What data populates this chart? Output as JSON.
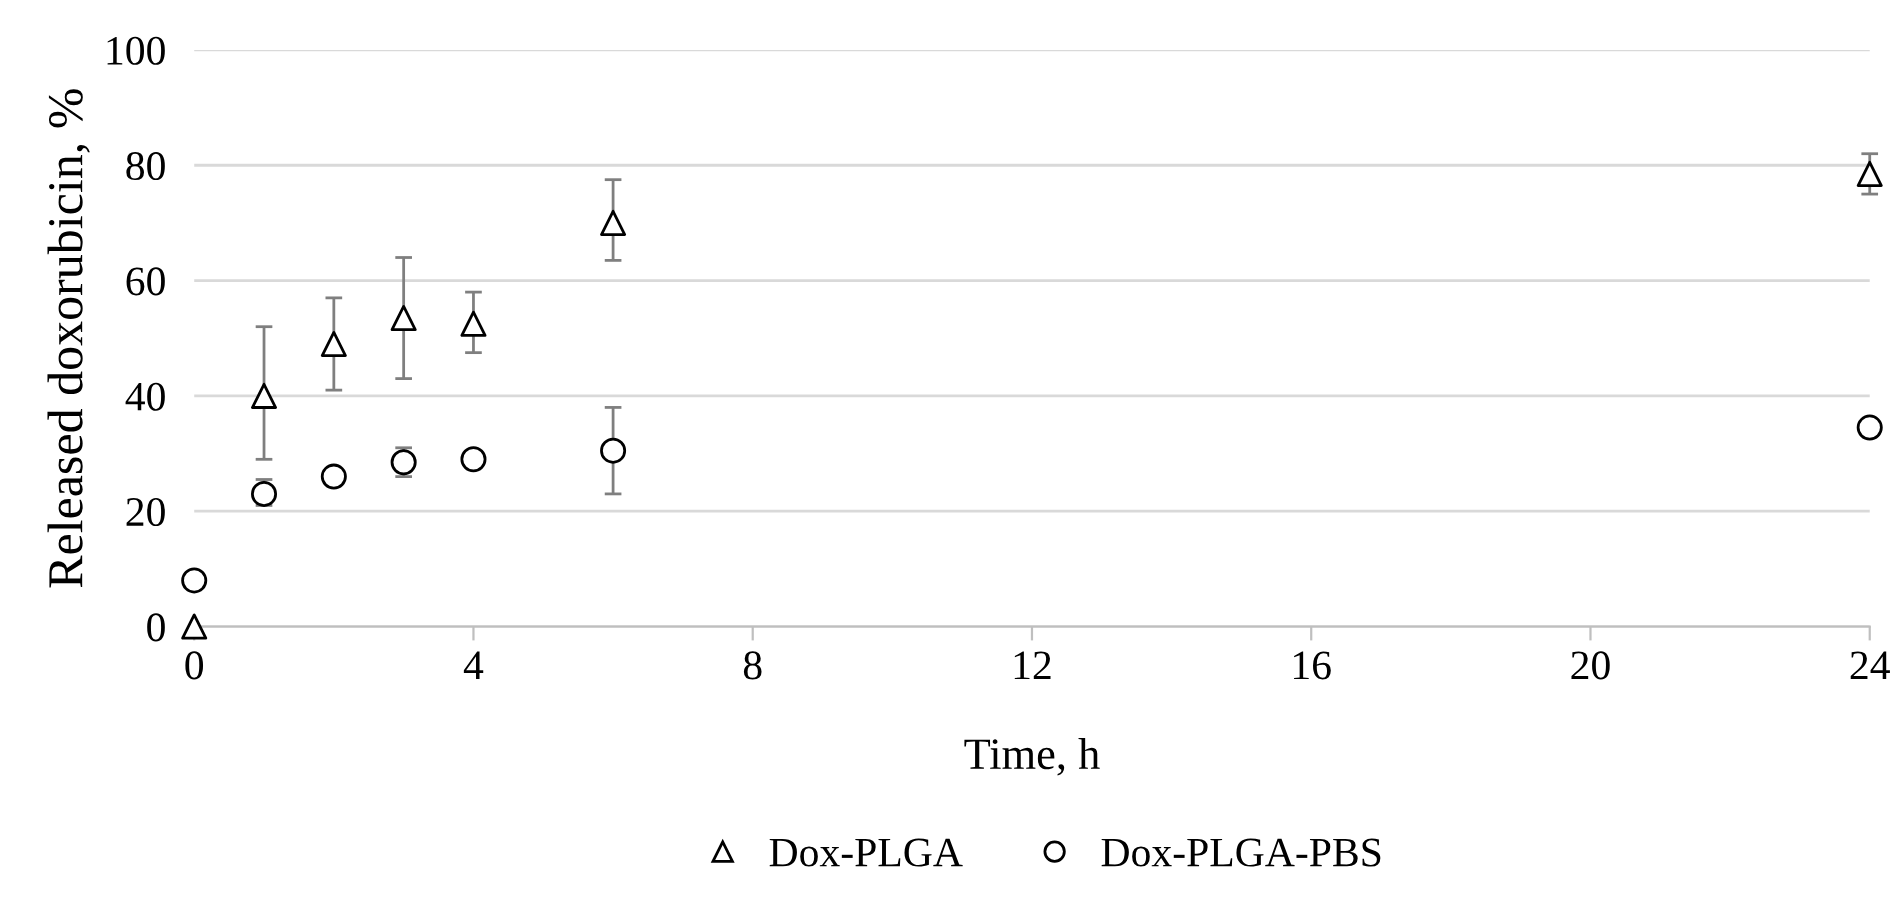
{
  "chart_data": {
    "type": "scatter",
    "xlabel": "Time, h",
    "ylabel": "Released doxorubicin, %",
    "xlim": [
      0,
      24
    ],
    "xticks": [
      0,
      4,
      8,
      12,
      16,
      20,
      24
    ],
    "ylim": [
      0,
      100
    ],
    "yticks": [
      0,
      20,
      40,
      60,
      80,
      100
    ],
    "grid": "y",
    "legend": "bottom",
    "series": [
      {
        "name": "Dox-PLGA",
        "color": "#000000",
        "marker": "triangle",
        "x": [
          0,
          1,
          2,
          3,
          4,
          6,
          24
        ],
        "values": [
          0,
          40,
          49,
          53.5,
          52.5,
          70,
          78.5
        ],
        "errors": [
          null,
          [
            29,
            52
          ],
          [
            41,
            57
          ],
          [
            43,
            64
          ],
          [
            47.5,
            58
          ],
          [
            63.5,
            77.5
          ],
          [
            75,
            82
          ]
        ]
      },
      {
        "name": "Dox-PLGA-PBS",
        "color": "#000000",
        "marker": "circle",
        "x": [
          0,
          1,
          2,
          3,
          4,
          6,
          24
        ],
        "values": [
          8,
          23,
          26,
          28.5,
          29,
          30.5,
          34.5
        ],
        "errors": [
          null,
          [
            21,
            25.5
          ],
          [
            25,
            27
          ],
          [
            26,
            31
          ],
          [
            28.5,
            29.5
          ],
          [
            23,
            38
          ],
          [
            33.5,
            35.5
          ]
        ]
      }
    ]
  }
}
